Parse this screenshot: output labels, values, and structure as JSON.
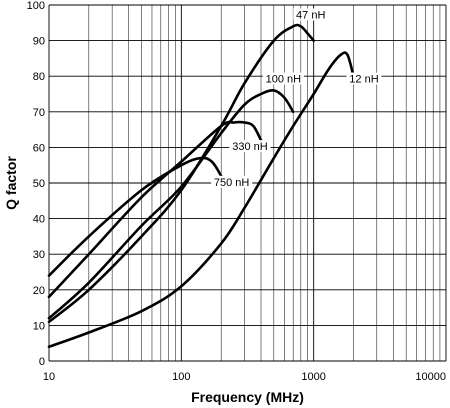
{
  "chart_data": {
    "type": "line",
    "xlabel": "Frequency (MHz)",
    "ylabel": "Q factor",
    "xscale": "log",
    "xlim": [
      10,
      10000
    ],
    "ylim": [
      0,
      100
    ],
    "grid": true,
    "x_ticks": [
      10,
      100,
      1000,
      10000
    ],
    "x_tick_labels": [
      "10",
      "100",
      "1000",
      "10000"
    ],
    "y_ticks": [
      0,
      10,
      20,
      30,
      40,
      50,
      60,
      70,
      80,
      90,
      100
    ],
    "y_tick_labels": [
      "0",
      "10",
      "20",
      "30",
      "40",
      "50",
      "60",
      "70",
      "80",
      "90",
      "100"
    ],
    "series": [
      {
        "name": "47 nH",
        "x": [
          10,
          20,
          50,
          100,
          200,
          300,
          500,
          700,
          800,
          900,
          1000
        ],
        "y": [
          11,
          20,
          35,
          48,
          66,
          78,
          90,
          94,
          94,
          92,
          90
        ]
      },
      {
        "name": "12 nH",
        "x": [
          10,
          20,
          50,
          100,
          200,
          300,
          500,
          700,
          1000,
          1300,
          1600,
          1800,
          2000
        ],
        "y": [
          4,
          8,
          14,
          21,
          33,
          43,
          57,
          66,
          75,
          82,
          86,
          86,
          80
        ]
      },
      {
        "name": "100 nH",
        "x": [
          10,
          20,
          50,
          100,
          200,
          300,
          400,
          500,
          600,
          700
        ],
        "y": [
          12,
          22,
          38,
          49,
          64,
          72,
          75,
          76,
          74,
          70
        ]
      },
      {
        "name": "330 nH",
        "x": [
          10,
          20,
          50,
          100,
          200,
          250,
          300,
          350,
          400
        ],
        "y": [
          18,
          30,
          46,
          56,
          66,
          67,
          67,
          66,
          62
        ]
      },
      {
        "name": "750 nH",
        "x": [
          10,
          20,
          50,
          100,
          140,
          170,
          200
        ],
        "y": [
          24,
          35,
          48,
          55,
          57,
          56,
          52
        ]
      }
    ],
    "labels": [
      {
        "text": "47 nH",
        "x": 950,
        "y": 96.5
      },
      {
        "text": "12 nH",
        "x": 2400,
        "y": 78.5
      },
      {
        "text": "100 nH",
        "x": 590,
        "y": 78.5
      },
      {
        "text": "330 nH",
        "x": 330,
        "y": 59.5
      },
      {
        "text": "750 nH",
        "x": 240,
        "y": 49.5
      }
    ]
  }
}
